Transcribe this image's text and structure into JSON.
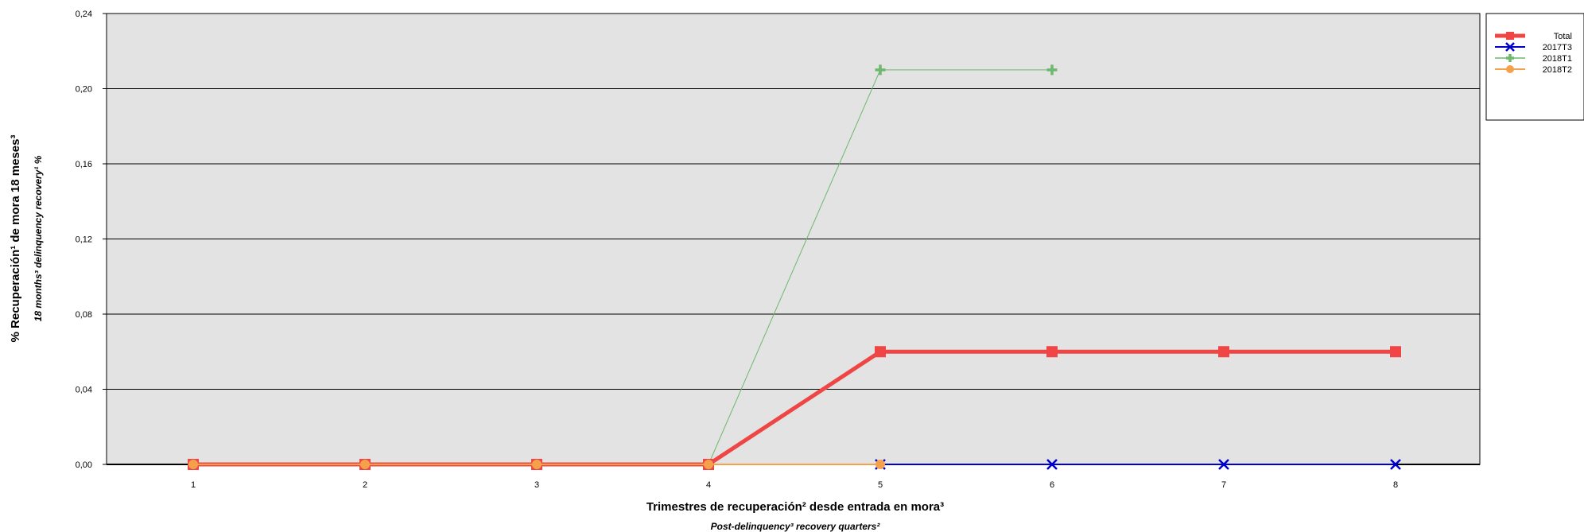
{
  "chart_data": {
    "type": "line",
    "x": [
      1,
      2,
      3,
      4,
      5,
      6,
      7,
      8
    ],
    "xticks": [
      "1",
      "2",
      "3",
      "4",
      "5",
      "6",
      "7",
      "8"
    ],
    "yticks": [
      "0,00",
      "0,04",
      "0,08",
      "0,12",
      "0,16",
      "0,20",
      "0,24"
    ],
    "ylim": [
      0,
      0.24
    ],
    "xlabel": "Trimestres de recuperación² desde entrada en mora³",
    "xlabel_sub": "Post-delinquency³ recovery quarters²",
    "ylabel": "% Recuperación¹ de mora 18 meses³",
    "ylabel_sub": "18 months³ delinquency recovery¹ %",
    "grid": true,
    "legend_position": "top-right",
    "series": [
      {
        "name": "Total",
        "color": "#f04545",
        "marker": "square",
        "values": [
          0,
          0,
          0,
          0,
          0.06,
          0.06,
          0.06,
          0.06
        ]
      },
      {
        "name": "2017T3",
        "color": "#0000cc",
        "marker": "x",
        "values": [
          0,
          0,
          0,
          0,
          0,
          0,
          0,
          0
        ]
      },
      {
        "name": "2018T1",
        "color": "#6db86d",
        "marker": "plus",
        "values": [
          0,
          0,
          0,
          0,
          0.21,
          0.21,
          null,
          null
        ]
      },
      {
        "name": "2018T2",
        "color": "#f5a04a",
        "marker": "circle",
        "values": [
          0,
          0,
          0,
          0,
          0,
          null,
          null,
          null
        ]
      }
    ]
  }
}
